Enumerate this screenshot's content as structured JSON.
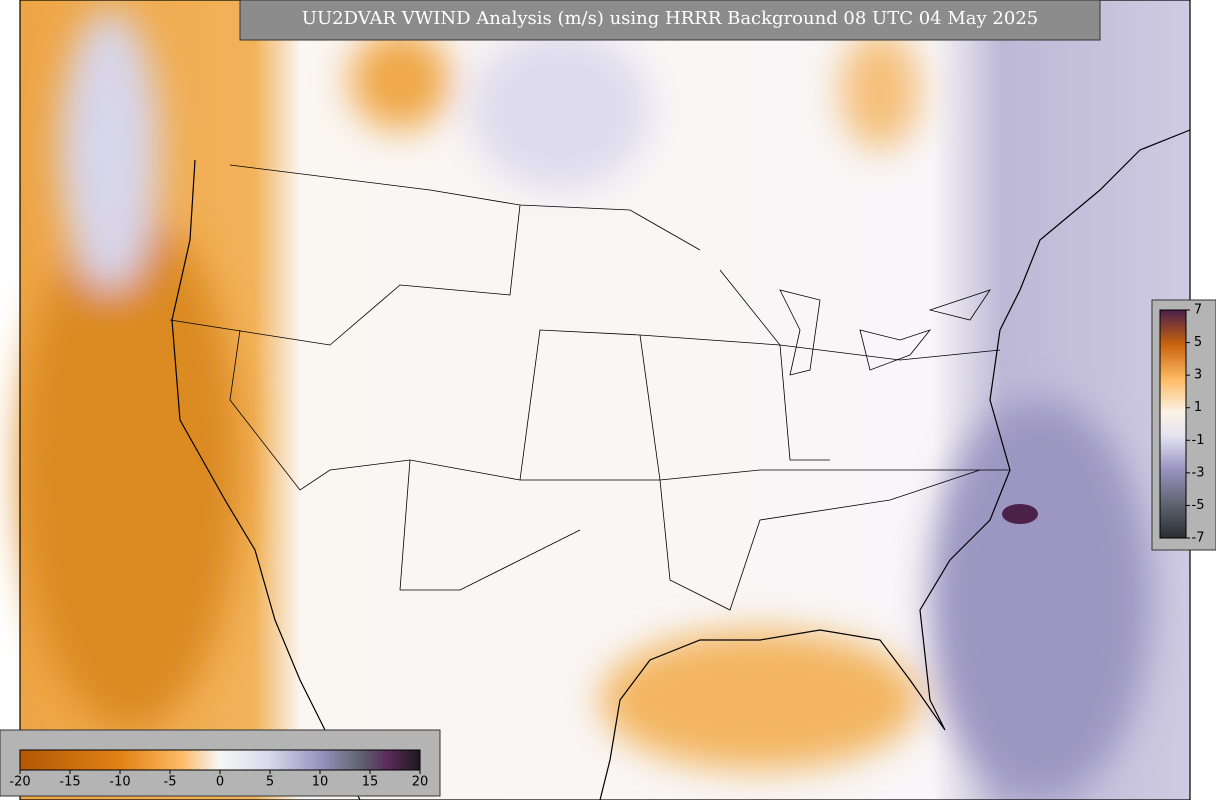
{
  "title": "UU2DVAR VWIND Analysis (m/s) using HRRR Background 08 UTC 04 May 2025",
  "colorbars": [
    {
      "orientation": "horizontal",
      "lim": [
        -20,
        20
      ],
      "ticks": [
        -20,
        -15,
        -10,
        -5,
        0,
        5,
        10,
        15,
        20
      ]
    },
    {
      "orientation": "vertical",
      "lim": [
        -7,
        7
      ],
      "ticks": [
        7,
        5,
        3,
        1,
        -1,
        -3,
        -5,
        -7
      ]
    }
  ]
}
